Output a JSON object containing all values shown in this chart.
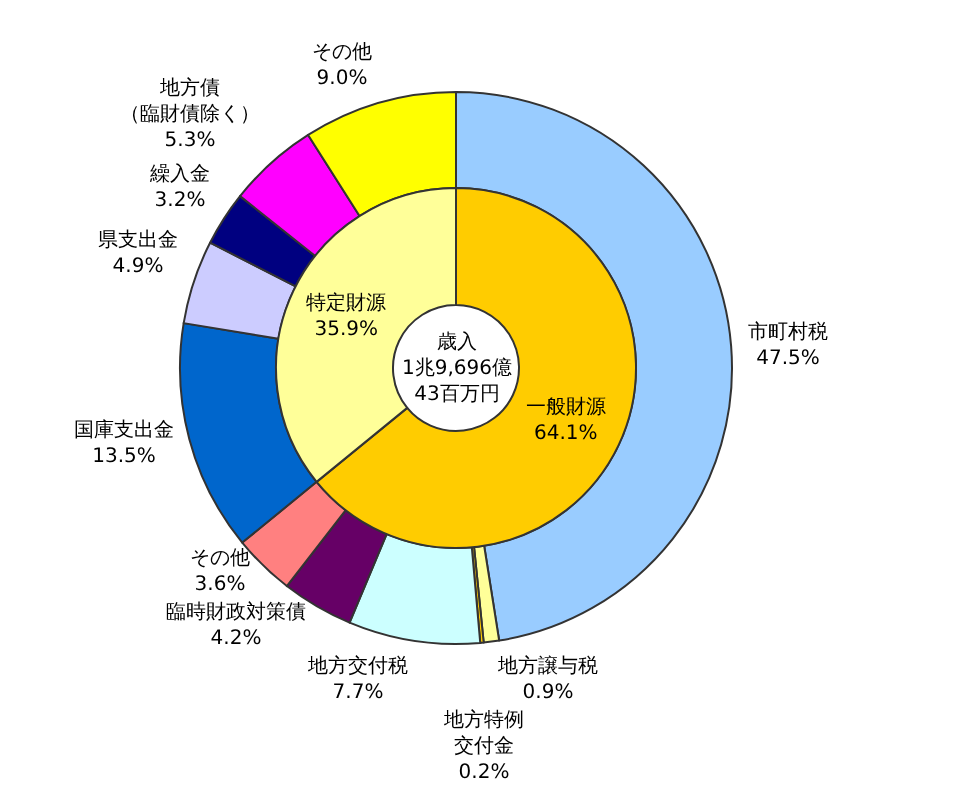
{
  "chart_data": [
    {
      "type": "donut",
      "annotations": [
        "歳入\n1兆9,696億\n43百万円"
      ],
      "categories": [
        "一般財源",
        "特定財源"
      ],
      "values": [
        64.1,
        35.9
      ],
      "value_labels": [
        "64.1%",
        "35.9%"
      ],
      "colors": [
        "#ffcc00",
        "#ffff99"
      ]
    },
    {
      "type": "donut",
      "categories": [
        "市町村税",
        "地方譲与税",
        "地方特例交付金",
        "地方交付税",
        "臨時財政対策債",
        "その他",
        "国庫支出金",
        "県支出金",
        "繰入金",
        "地方債（臨財債除く）",
        "その他"
      ],
      "values": [
        47.5,
        0.9,
        0.2,
        7.7,
        4.2,
        3.6,
        13.5,
        4.9,
        3.2,
        5.3,
        9.0
      ],
      "value_labels": [
        "47.5%",
        "0.9%",
        "0.2%",
        "7.7%",
        "4.2%",
        "3.6%",
        "13.5%",
        "4.9%",
        "3.2%",
        "5.3%",
        "9.0%"
      ],
      "colors": [
        "#99ccff",
        "#ffff99",
        "#ffcc00",
        "#ccffff",
        "#660066",
        "#ff8080",
        "#0066cc",
        "#ccccff",
        "#000080",
        "#ff00ff",
        "#ffff00"
      ]
    }
  ]
}
